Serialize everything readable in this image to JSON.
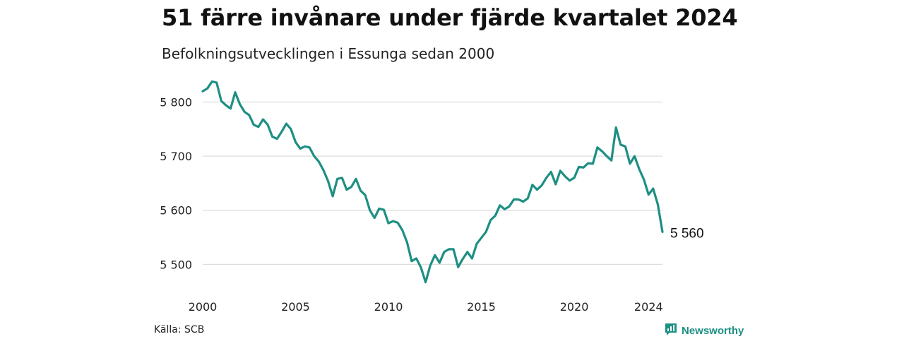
{
  "title": "51 färre invånare under fjärde kvartalet 2024",
  "subtitle": "Befolkningsutvecklingen i Essunga sedan 2000",
  "source": "Källa: SCB",
  "brand": {
    "name": "Newsworthy",
    "icon": "newsworthy-logo-icon",
    "color": "#1d8f83"
  },
  "chart_data": {
    "type": "line",
    "title": "51 färre invånare under fjärde kvartalet 2024",
    "subtitle": "Befolkningsutvecklingen i Essunga sedan 2000",
    "xlabel": "",
    "ylabel": "",
    "xlim": [
      2000,
      2024.75
    ],
    "ylim": [
      5460,
      5845
    ],
    "grid": true,
    "line_color": "#1d8f83",
    "x_ticks": [
      {
        "value": 2000,
        "label": "2000"
      },
      {
        "value": 2005,
        "label": "2005"
      },
      {
        "value": 2010,
        "label": "2010"
      },
      {
        "value": 2015,
        "label": "2015"
      },
      {
        "value": 2020,
        "label": "2020"
      },
      {
        "value": 2024,
        "label": "2024"
      }
    ],
    "y_ticks": [
      {
        "value": 5500,
        "label": "5 500"
      },
      {
        "value": 5600,
        "label": "5 600"
      },
      {
        "value": 5700,
        "label": "5 700"
      },
      {
        "value": 5800,
        "label": "5 800"
      }
    ],
    "end_label": "5 560",
    "x": [
      2000.0,
      2000.25,
      2000.5,
      2000.75,
      2001.0,
      2001.25,
      2001.5,
      2001.75,
      2002.0,
      2002.25,
      2002.5,
      2002.75,
      2003.0,
      2003.25,
      2003.5,
      2003.75,
      2004.0,
      2004.25,
      2004.5,
      2004.75,
      2005.0,
      2005.25,
      2005.5,
      2005.75,
      2006.0,
      2006.25,
      2006.5,
      2006.75,
      2007.0,
      2007.25,
      2007.5,
      2007.75,
      2008.0,
      2008.25,
      2008.5,
      2008.75,
      2009.0,
      2009.25,
      2009.5,
      2009.75,
      2010.0,
      2010.25,
      2010.5,
      2010.75,
      2011.0,
      2011.25,
      2011.5,
      2011.75,
      2012.0,
      2012.25,
      2012.5,
      2012.75,
      2013.0,
      2013.25,
      2013.5,
      2013.75,
      2014.0,
      2014.25,
      2014.5,
      2014.75,
      2015.0,
      2015.25,
      2015.5,
      2015.75,
      2016.0,
      2016.25,
      2016.5,
      2016.75,
      2017.0,
      2017.25,
      2017.5,
      2017.75,
      2018.0,
      2018.25,
      2018.5,
      2018.75,
      2019.0,
      2019.25,
      2019.5,
      2019.75,
      2020.0,
      2020.25,
      2020.5,
      2020.75,
      2021.0,
      2021.25,
      2021.5,
      2021.75,
      2022.0,
      2022.25,
      2022.5,
      2022.75,
      2023.0,
      2023.25,
      2023.5,
      2023.75,
      2024.0,
      2024.25,
      2024.5,
      2024.75
    ],
    "series": [
      {
        "values": [
          5820,
          5825,
          5838,
          5836,
          5802,
          5794,
          5788,
          5818,
          5796,
          5782,
          5776,
          5758,
          5754,
          5768,
          5758,
          5736,
          5732,
          5745,
          5760,
          5750,
          5726,
          5714,
          5718,
          5716,
          5700,
          5690,
          5674,
          5654,
          5626,
          5658,
          5660,
          5638,
          5643,
          5658,
          5636,
          5628,
          5600,
          5586,
          5603,
          5601,
          5576,
          5580,
          5577,
          5563,
          5541,
          5506,
          5511,
          5494,
          5467,
          5498,
          5517,
          5503,
          5523,
          5528,
          5528,
          5495,
          5510,
          5523,
          5511,
          5538,
          5549,
          5560,
          5582,
          5590,
          5609,
          5602,
          5607,
          5620,
          5620,
          5616,
          5622,
          5647,
          5638,
          5646,
          5660,
          5671,
          5648,
          5673,
          5663,
          5655,
          5660,
          5680,
          5679,
          5687,
          5686,
          5716,
          5709,
          5700,
          5692,
          5753,
          5721,
          5718,
          5686,
          5700,
          5676,
          5657,
          5629,
          5640,
          5611,
          5560
        ]
      }
    ]
  }
}
